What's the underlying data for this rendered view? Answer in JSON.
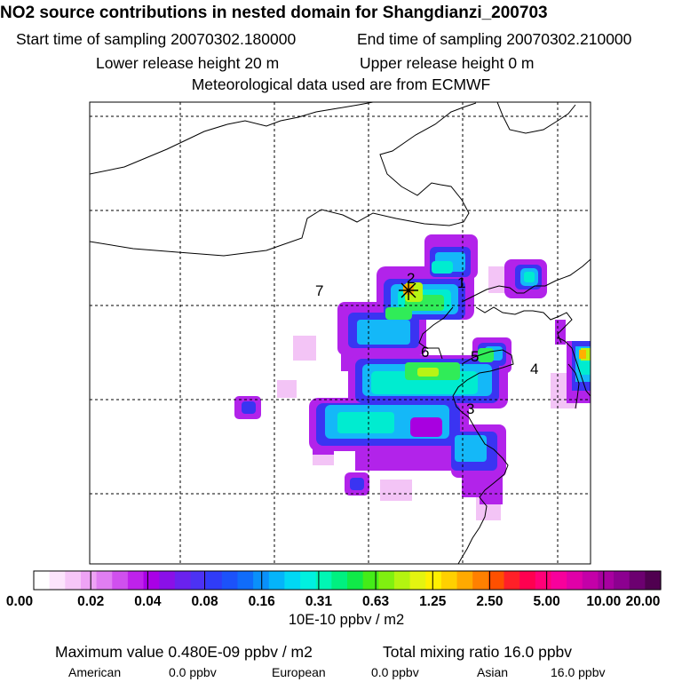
{
  "header": {
    "title": "NO2 source contributions in nested domain for Shangdianzi_200703",
    "start_time": "Start time of sampling 20070302.180000",
    "end_time": "End time of sampling 20070302.210000",
    "lower_release": "Lower release height   20 m",
    "upper_release": "Upper release height    0 m",
    "met_data": "Meteorological data used are from ECMWF"
  },
  "map": {
    "station_labels": [
      "1",
      "2",
      "3",
      "4",
      "5",
      "6",
      "7"
    ]
  },
  "colorbar": {
    "unit": "10E-10 ppbv / m2",
    "ticks": [
      "0.00",
      "0.02",
      "0.04",
      "0.08",
      "0.16",
      "0.31",
      "0.63",
      "1.25",
      "2.50",
      "5.00",
      "10.00",
      "20.00"
    ],
    "colors": [
      "#ffffff",
      "#fce4fc",
      "#f6c6f8",
      "#eea3f5",
      "#e07ef2",
      "#d050ee",
      "#bf22eb",
      "#a900e6",
      "#8a10e8",
      "#6a22ee",
      "#4c32f4",
      "#303cf8",
      "#1c52fa",
      "#106cfa",
      "#0a90fa",
      "#04b4fa",
      "#00d8f4",
      "#00f0e0",
      "#00f6b4",
      "#00f080",
      "#10ea48",
      "#44ec18",
      "#80f010",
      "#b4f410",
      "#e4f410",
      "#fff000",
      "#ffd000",
      "#ffaa00",
      "#ff8000",
      "#ff5000",
      "#ff2028",
      "#ff0050",
      "#ff0078",
      "#f8009c",
      "#e000a8",
      "#c400a8",
      "#a800a0",
      "#8c0090",
      "#6c0070",
      "#500050"
    ]
  },
  "footer": {
    "max_value": "Maximum value  0.480E-09 ppbv / m2",
    "total_mixing": "Total mixing ratio      16.0 ppbv",
    "american_label": "American",
    "american_value": "0.0 ppbv",
    "european_label": "European",
    "european_value": "0.0 ppbv",
    "asian_label": "Asian",
    "asian_value": "16.0 ppbv"
  }
}
